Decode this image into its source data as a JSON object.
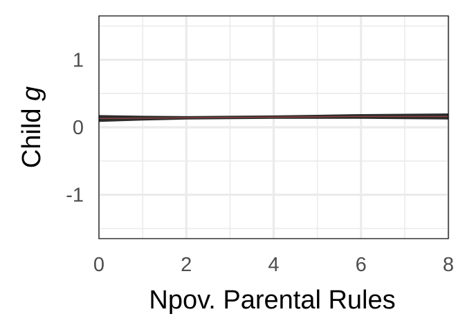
{
  "chart_data": {
    "type": "line",
    "title": "",
    "xlabel": "Npov. Parental Rules",
    "ylabel_prefix": "Child ",
    "ylabel_var": "g",
    "xlim": [
      0,
      8
    ],
    "ylim": [
      -1.65,
      1.65
    ],
    "x_ticks": [
      0,
      2,
      4,
      6,
      8
    ],
    "x_tick_labels": [
      "0",
      "2",
      "4",
      "6",
      "8"
    ],
    "y_ticks": [
      -1,
      0,
      1
    ],
    "y_tick_labels": [
      "-1",
      "0",
      "1"
    ],
    "grid": true,
    "legend": "none",
    "series": [
      {
        "x": [
          0,
          1,
          2,
          3,
          4,
          5,
          6,
          7,
          8
        ],
        "y": [
          0.13,
          0.135,
          0.14,
          0.145,
          0.15,
          0.155,
          0.16,
          0.16,
          0.16
        ],
        "lower": [
          0.08,
          0.1,
          0.115,
          0.12,
          0.125,
          0.125,
          0.125,
          0.12,
          0.115
        ],
        "upper": [
          0.18,
          0.17,
          0.165,
          0.17,
          0.175,
          0.185,
          0.195,
          0.2,
          0.205
        ]
      }
    ],
    "colors": {
      "band": "#1a1a1a",
      "line": "#d9534f",
      "grid": "#ebebeb",
      "panel_border": "#000000"
    }
  }
}
